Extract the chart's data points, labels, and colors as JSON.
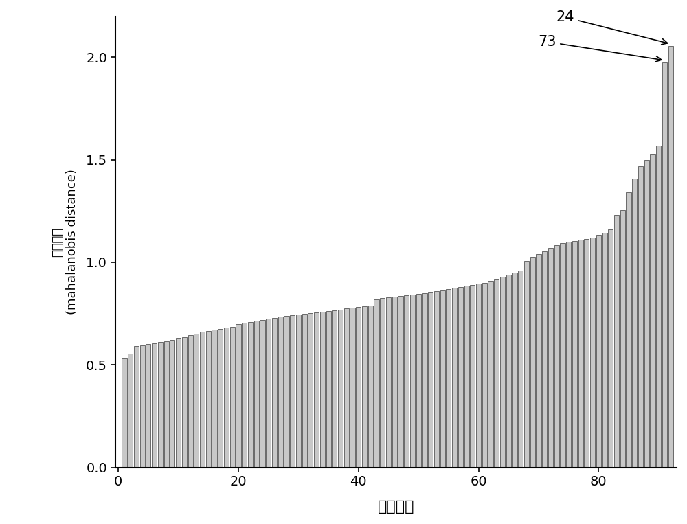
{
  "values": [
    0.53,
    0.555,
    0.59,
    0.595,
    0.6,
    0.605,
    0.61,
    0.615,
    0.62,
    0.63,
    0.635,
    0.645,
    0.65,
    0.66,
    0.665,
    0.67,
    0.675,
    0.68,
    0.685,
    0.7,
    0.705,
    0.71,
    0.715,
    0.72,
    0.725,
    0.73,
    0.735,
    0.738,
    0.742,
    0.745,
    0.748,
    0.752,
    0.755,
    0.758,
    0.762,
    0.765,
    0.77,
    0.775,
    0.778,
    0.782,
    0.785,
    0.79,
    0.82,
    0.825,
    0.828,
    0.832,
    0.835,
    0.838,
    0.842,
    0.845,
    0.85,
    0.855,
    0.86,
    0.865,
    0.87,
    0.875,
    0.88,
    0.885,
    0.89,
    0.895,
    0.9,
    0.91,
    0.92,
    0.93,
    0.94,
    0.95,
    0.96,
    1.005,
    1.025,
    1.04,
    1.055,
    1.07,
    1.085,
    1.095,
    1.1,
    1.105,
    1.11,
    1.115,
    1.12,
    1.135,
    1.145,
    1.16,
    1.23,
    1.255,
    1.34,
    1.41,
    1.47,
    1.5,
    1.53,
    1.57,
    1.975,
    2.055
  ],
  "bar_color": "#c8c8c8",
  "bar_edgecolor": "#555555",
  "ylabel_line1": "马",
  "ylabel_line2": "氏",
  "ylabel_line3": "距",
  "ylabel_line4": "离",
  "ylabel_line5": "（mahalanobis distance）",
  "xlabel_chinese": "样本序号",
  "annotation_label_24": "24",
  "annotation_label_73": "73",
  "ylim": [
    0.0,
    2.2
  ],
  "yticks": [
    0.0,
    0.5,
    1.0,
    1.5,
    2.0
  ],
  "xticks": [
    0,
    20,
    40,
    60,
    80
  ],
  "background_color": "#ffffff",
  "annotation_24_bar_index": 92,
  "annotation_73_bar_index": 91,
  "annotation_24_value": 2.055,
  "annotation_73_value": 1.975
}
